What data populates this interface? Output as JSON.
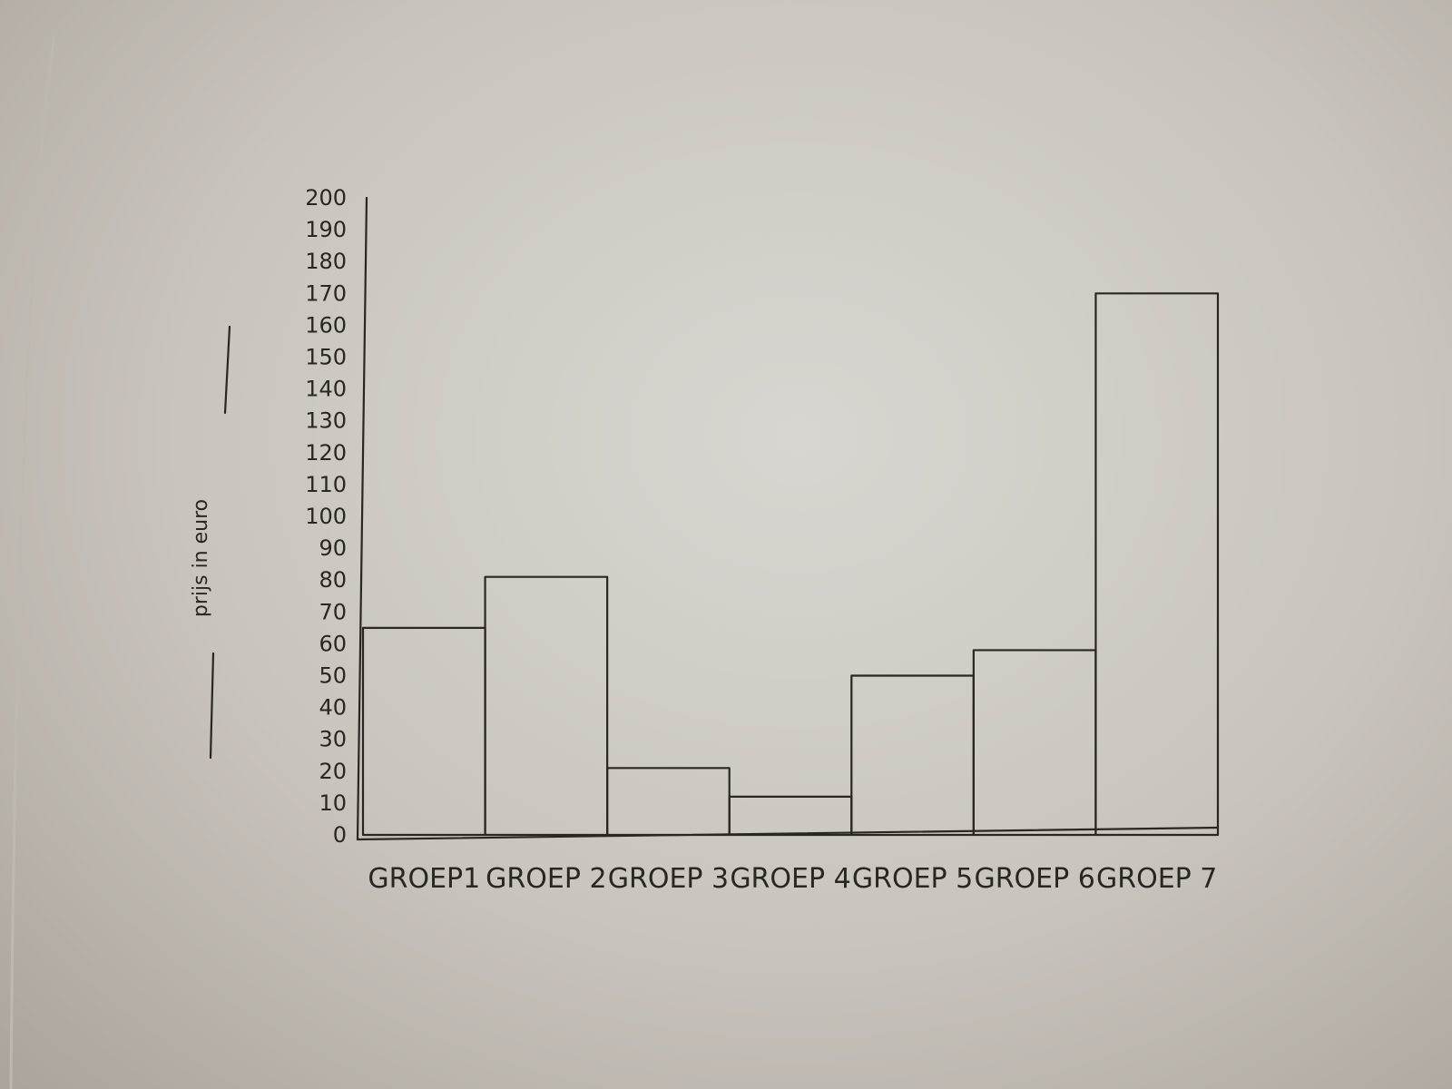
{
  "chart_data": {
    "type": "bar",
    "title": "",
    "xlabel": "",
    "ylabel": "prijs in euro",
    "ylim": [
      0,
      200
    ],
    "yticks": [
      0,
      10,
      20,
      30,
      40,
      50,
      60,
      70,
      80,
      90,
      100,
      110,
      120,
      130,
      140,
      150,
      160,
      170,
      180,
      190,
      200
    ],
    "categories": [
      "GROEP1",
      "GROEP 2",
      "GROEP 3",
      "GROEP 4",
      "GROEP 5",
      "GROEP 6",
      "GROEP 7"
    ],
    "values": [
      65,
      81,
      21,
      12,
      50,
      58,
      170
    ],
    "grid": false,
    "colors": {
      "ink": "#2a2622",
      "paper": "#d9d6d1"
    }
  }
}
